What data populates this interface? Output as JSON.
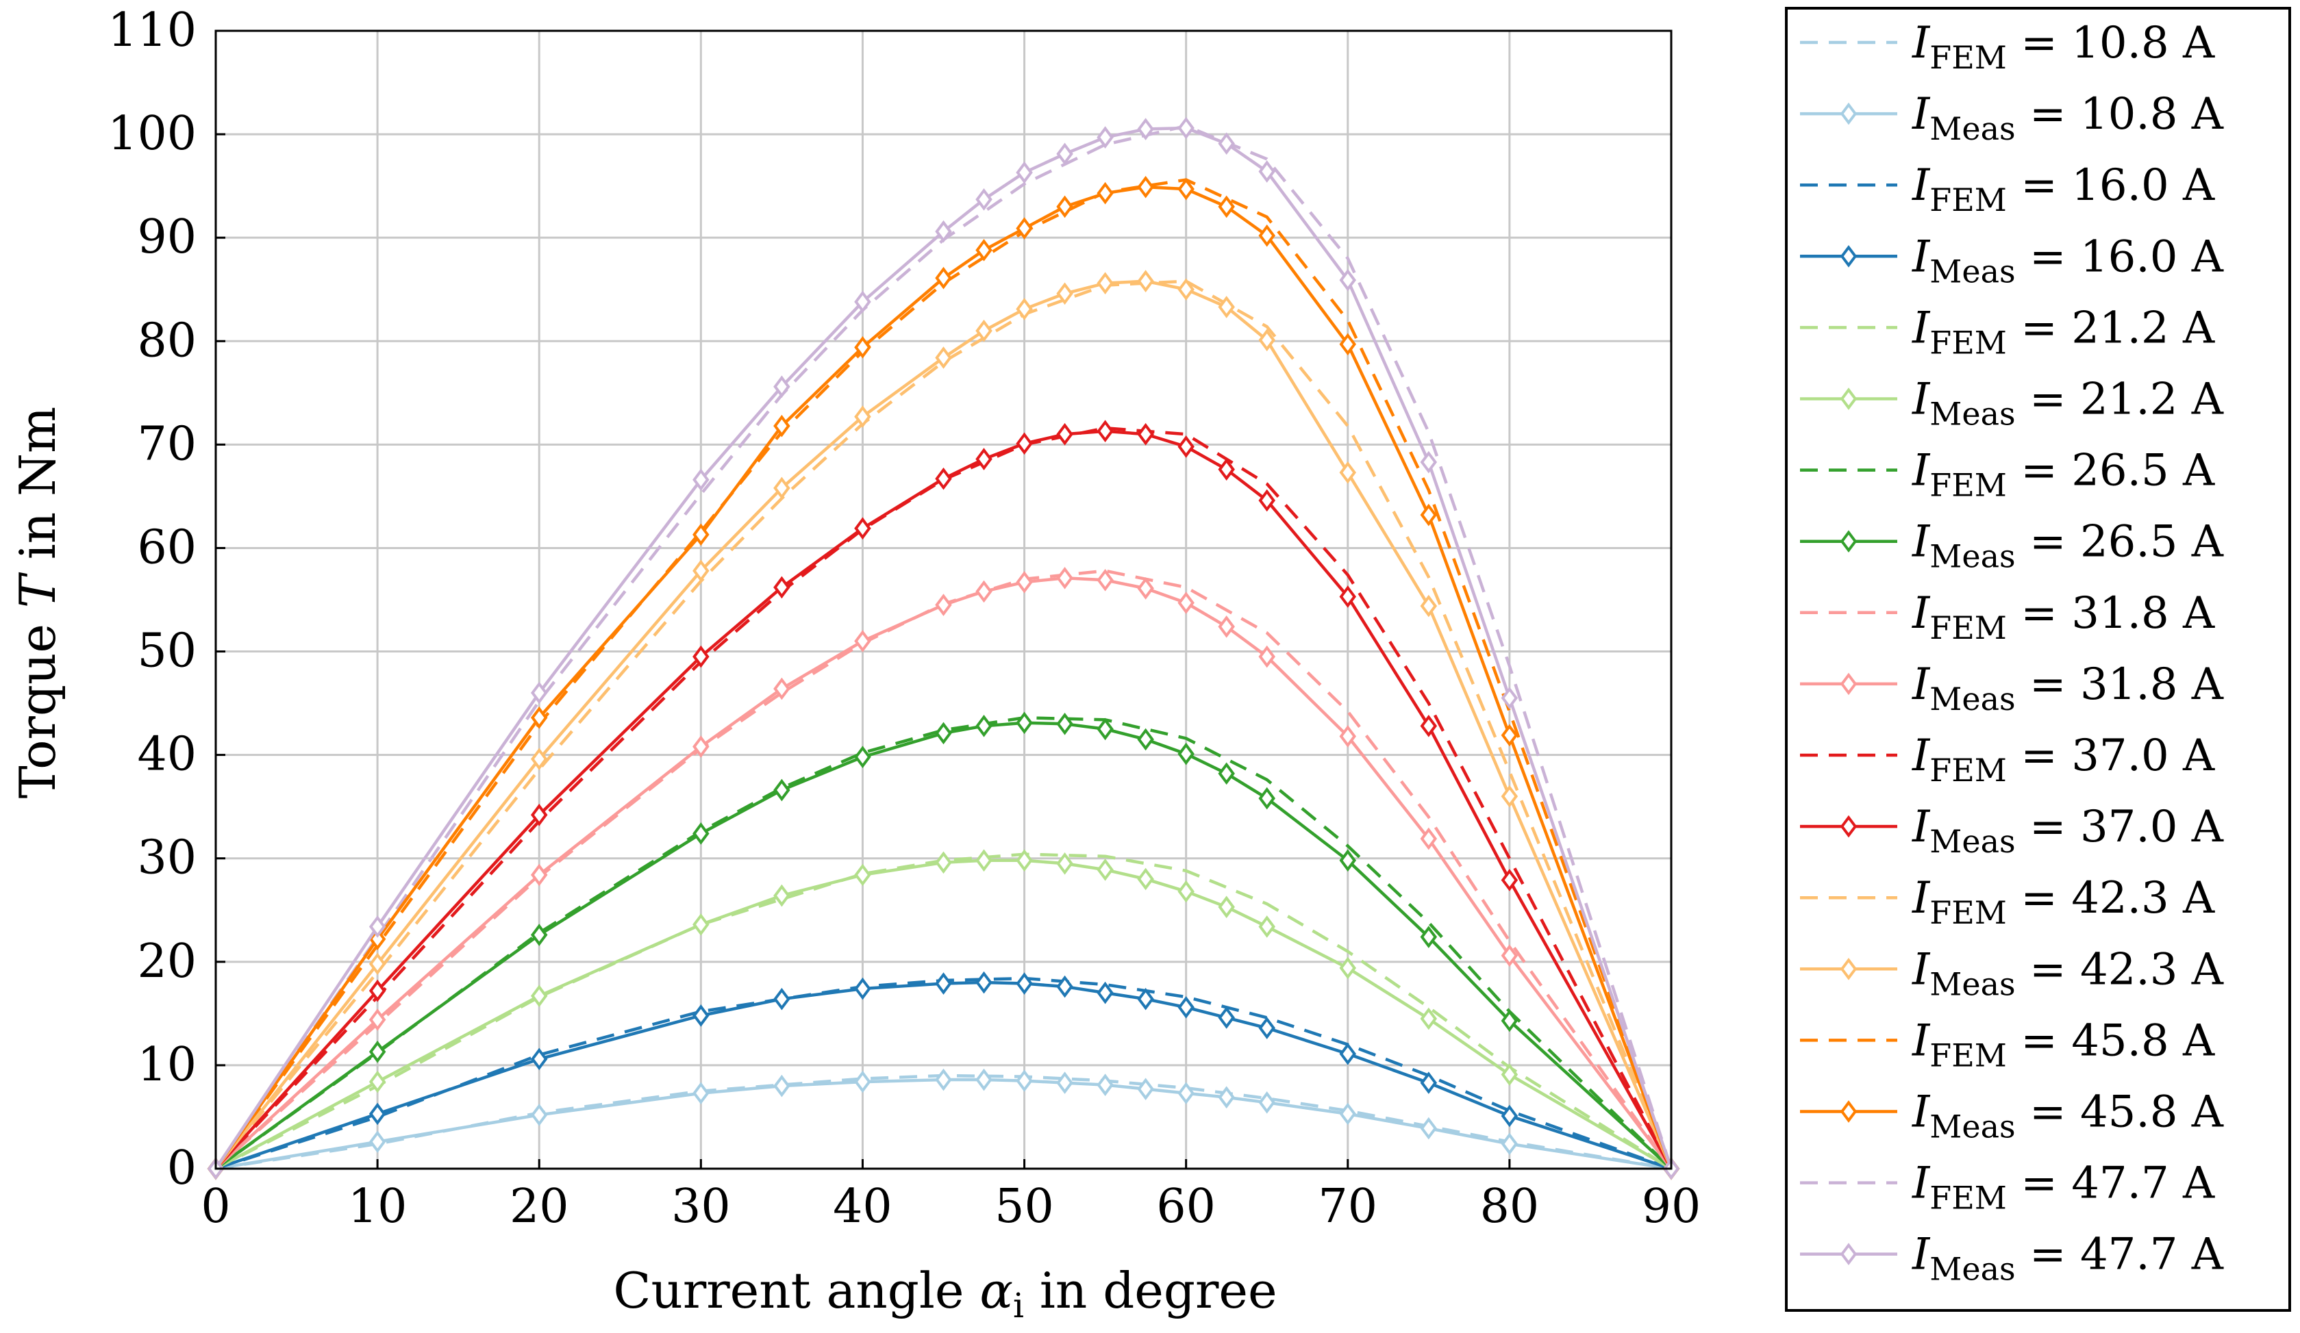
{
  "chart_data": {
    "type": "line",
    "title": "",
    "xlabel": "Current angle α_i in degree",
    "ylabel": "Torque T in Nm",
    "xlabel_parts": {
      "prefix": "Current angle ",
      "symbol": "α",
      "sub": "i",
      "suffix": " in degree"
    },
    "ylabel_parts": {
      "prefix": "Torque ",
      "symbol": "T",
      "suffix": " in Nm"
    },
    "xlim": [
      0,
      90
    ],
    "ylim": [
      0,
      110
    ],
    "xticks": [
      0,
      10,
      20,
      30,
      40,
      50,
      60,
      70,
      80,
      90
    ],
    "yticks": [
      0,
      10,
      20,
      30,
      40,
      50,
      60,
      70,
      80,
      90,
      100,
      110
    ],
    "grid": true,
    "legend_position": "outside-right",
    "series": [
      {
        "name": "I_FEM = 10.8 A",
        "label_symbol": "I",
        "label_sub": "FEM",
        "label_value": " = 10.8 A",
        "style": "dashed",
        "color": "#a6cee3",
        "x": [
          0,
          10,
          20,
          30,
          40,
          45,
          50,
          55,
          60,
          65,
          70,
          75,
          80,
          90
        ],
        "y": [
          0,
          2.4,
          5.4,
          7.5,
          8.7,
          9.0,
          8.9,
          8.5,
          7.8,
          6.8,
          5.6,
          4.1,
          2.6,
          0
        ]
      },
      {
        "name": "I_Meas = 10.8 A",
        "label_symbol": "I",
        "label_sub": "Meas",
        "label_value": " = 10.8 A",
        "style": "solid-diamond",
        "color": "#a6cee3",
        "x": [
          0,
          10,
          20,
          30,
          35,
          40,
          45,
          47.5,
          50,
          52.5,
          55,
          57.5,
          60,
          62.5,
          65,
          70,
          75,
          80,
          90
        ],
        "y": [
          0,
          2.6,
          5.2,
          7.3,
          8.0,
          8.4,
          8.6,
          8.6,
          8.5,
          8.3,
          8.1,
          7.7,
          7.3,
          6.9,
          6.4,
          5.3,
          3.9,
          2.4,
          0
        ]
      },
      {
        "name": "I_FEM = 16.0 A",
        "label_symbol": "I",
        "label_sub": "FEM",
        "label_value": " = 16.0 A",
        "style": "dashed",
        "color": "#1f78b4",
        "x": [
          0,
          10,
          20,
          30,
          40,
          45,
          50,
          55,
          60,
          65,
          70,
          75,
          80,
          90
        ],
        "y": [
          0,
          5.0,
          11.0,
          15.2,
          17.6,
          18.2,
          18.4,
          17.8,
          16.6,
          14.6,
          12.0,
          9.0,
          5.6,
          0
        ]
      },
      {
        "name": "I_Meas = 16.0 A",
        "label_symbol": "I",
        "label_sub": "Meas",
        "label_value": " = 16.0 A",
        "style": "solid-diamond",
        "color": "#1f78b4",
        "x": [
          0,
          10,
          20,
          30,
          35,
          40,
          45,
          47.5,
          50,
          52.5,
          55,
          57.5,
          60,
          62.5,
          65,
          70,
          75,
          80,
          90
        ],
        "y": [
          0,
          5.3,
          10.6,
          14.8,
          16.4,
          17.4,
          17.9,
          18.0,
          17.9,
          17.6,
          17.0,
          16.4,
          15.6,
          14.6,
          13.6,
          11.1,
          8.3,
          5.1,
          0
        ]
      },
      {
        "name": "I_FEM = 21.2 A",
        "label_symbol": "I",
        "label_sub": "FEM",
        "label_value": " = 21.2 A",
        "style": "dashed",
        "color": "#b2df8a",
        "x": [
          0,
          10,
          20,
          30,
          40,
          45,
          50,
          55,
          60,
          65,
          70,
          75,
          80,
          90
        ],
        "y": [
          0,
          8.0,
          16.6,
          23.6,
          28.5,
          29.8,
          30.4,
          30.2,
          28.8,
          25.6,
          21.0,
          15.6,
          9.8,
          0
        ]
      },
      {
        "name": "I_Meas = 21.2 A",
        "label_symbol": "I",
        "label_sub": "Meas",
        "label_value": " = 21.2 A",
        "style": "solid-diamond",
        "color": "#b2df8a",
        "x": [
          0,
          10,
          20,
          30,
          35,
          40,
          45,
          47.5,
          50,
          52.5,
          55,
          57.5,
          60,
          62.5,
          65,
          70,
          75,
          80,
          90
        ],
        "y": [
          0,
          8.4,
          16.7,
          23.6,
          26.4,
          28.4,
          29.6,
          29.8,
          29.8,
          29.5,
          28.9,
          28.0,
          26.8,
          25.3,
          23.4,
          19.4,
          14.5,
          9.1,
          0
        ]
      },
      {
        "name": "I_FEM = 26.5 A",
        "label_symbol": "I",
        "label_sub": "FEM",
        "label_value": " = 26.5 A",
        "style": "dashed",
        "color": "#33a02c",
        "x": [
          0,
          10,
          20,
          30,
          35,
          40,
          45,
          50,
          55,
          60,
          65,
          70,
          75,
          80,
          90
        ],
        "y": [
          0,
          11.2,
          22.8,
          32.6,
          36.8,
          40.2,
          42.4,
          43.6,
          43.4,
          41.6,
          37.6,
          31.2,
          23.8,
          15.2,
          0
        ]
      },
      {
        "name": "I_Meas = 26.5 A",
        "label_symbol": "I",
        "label_sub": "Meas",
        "label_value": " = 26.5 A",
        "style": "solid-diamond",
        "color": "#33a02c",
        "x": [
          0,
          10,
          20,
          30,
          35,
          40,
          45,
          47.5,
          50,
          52.5,
          55,
          57.5,
          60,
          62.5,
          65,
          70,
          75,
          80,
          90
        ],
        "y": [
          0,
          11.3,
          22.6,
          32.4,
          36.6,
          39.8,
          42.1,
          42.8,
          43.1,
          43.0,
          42.5,
          41.5,
          40.1,
          38.2,
          35.8,
          29.8,
          22.4,
          14.3,
          0
        ]
      },
      {
        "name": "I_FEM = 31.8 A",
        "label_symbol": "I",
        "label_sub": "FEM",
        "label_value": " = 31.8 A",
        "style": "dashed",
        "color": "#fb9a99",
        "x": [
          0,
          10,
          20,
          30,
          35,
          40,
          45,
          50,
          55,
          60,
          65,
          70,
          75,
          80,
          90
        ],
        "y": [
          0,
          14.0,
          28.2,
          40.6,
          46.0,
          50.8,
          54.6,
          57.0,
          57.8,
          56.2,
          51.8,
          44.2,
          34.0,
          22.0,
          0
        ]
      },
      {
        "name": "I_Meas = 31.8 A",
        "label_symbol": "I",
        "label_sub": "Meas",
        "label_value": " = 31.8 A",
        "style": "solid-diamond",
        "color": "#fb9a99",
        "x": [
          0,
          10,
          20,
          30,
          35,
          40,
          45,
          47.5,
          50,
          52.5,
          55,
          57.5,
          60,
          62.5,
          65,
          70,
          75,
          80,
          90
        ],
        "y": [
          0,
          14.4,
          28.4,
          40.8,
          46.4,
          51.0,
          54.5,
          55.8,
          56.7,
          57.1,
          56.9,
          56.1,
          54.7,
          52.4,
          49.5,
          41.8,
          31.9,
          20.6,
          0
        ]
      },
      {
        "name": "I_FEM = 37.0 A",
        "label_symbol": "I",
        "label_sub": "FEM",
        "label_value": " = 37.0 A",
        "style": "dashed",
        "color": "#e31a1c",
        "x": [
          0,
          10,
          20,
          30,
          35,
          40,
          45,
          50,
          55,
          60,
          65,
          70,
          75,
          80,
          90
        ],
        "y": [
          0,
          16.6,
          33.6,
          49.0,
          55.8,
          61.8,
          66.6,
          70.0,
          71.6,
          71.0,
          66.2,
          57.4,
          45.0,
          30.0,
          0
        ]
      },
      {
        "name": "I_Meas = 37.0 A",
        "label_symbol": "I",
        "label_sub": "Meas",
        "label_value": " = 37.0 A",
        "style": "solid-diamond",
        "color": "#e31a1c",
        "x": [
          0,
          10,
          20,
          30,
          35,
          40,
          45,
          47.5,
          50,
          52.5,
          55,
          57.5,
          60,
          62.5,
          65,
          70,
          75,
          80,
          90
        ],
        "y": [
          0,
          17.2,
          34.2,
          49.5,
          56.2,
          61.9,
          66.7,
          68.6,
          70.1,
          71.0,
          71.3,
          71.0,
          69.8,
          67.6,
          64.6,
          55.3,
          42.8,
          27.9,
          0
        ]
      },
      {
        "name": "I_FEM = 42.3 A",
        "label_symbol": "I",
        "label_sub": "FEM",
        "label_value": " = 42.3 A",
        "style": "dashed",
        "color": "#fdbf6f",
        "x": [
          0,
          10,
          20,
          30,
          35,
          40,
          45,
          50,
          55,
          60,
          65,
          70,
          75,
          80,
          90
        ],
        "y": [
          0,
          19.0,
          38.6,
          56.8,
          64.8,
          72.0,
          78.0,
          82.6,
          85.4,
          85.8,
          81.4,
          71.8,
          57.2,
          38.4,
          0
        ]
      },
      {
        "name": "I_Meas = 42.3 A",
        "label_symbol": "I",
        "label_sub": "Meas",
        "label_value": " = 42.3 A",
        "style": "solid-diamond",
        "color": "#fdbf6f",
        "x": [
          0,
          10,
          20,
          30,
          35,
          40,
          45,
          47.5,
          50,
          52.5,
          55,
          57.5,
          60,
          62.5,
          65,
          70,
          75,
          80,
          90
        ],
        "y": [
          0,
          19.8,
          39.6,
          57.8,
          65.8,
          72.7,
          78.4,
          81.0,
          83.1,
          84.6,
          85.6,
          85.8,
          85.0,
          83.3,
          80.1,
          67.3,
          54.4,
          36.0,
          0
        ]
      },
      {
        "name": "I_FEM = 45.8 A",
        "label_symbol": "I",
        "label_sub": "FEM",
        "label_value": " = 45.8 A",
        "style": "dashed",
        "color": "#ff7f00",
        "x": [
          0,
          10,
          20,
          30,
          35,
          40,
          45,
          50,
          55,
          60,
          65,
          70,
          75,
          80,
          90
        ],
        "y": [
          0,
          21.6,
          43.0,
          61.6,
          71.2,
          79.0,
          85.6,
          90.6,
          94.4,
          95.6,
          92.0,
          82.0,
          65.6,
          44.2,
          0
        ]
      },
      {
        "name": "I_Meas = 45.8 A",
        "label_symbol": "I",
        "label_sub": "Meas",
        "label_value": " = 45.8 A",
        "style": "solid-diamond",
        "color": "#ff7f00",
        "x": [
          0,
          10,
          20,
          30,
          35,
          40,
          45,
          47.5,
          50,
          52.5,
          55,
          57.5,
          60,
          62.5,
          65,
          70,
          75,
          80,
          90
        ],
        "y": [
          0,
          22.2,
          43.6,
          61.3,
          71.8,
          79.4,
          86.1,
          88.8,
          90.9,
          93.0,
          94.3,
          94.9,
          94.7,
          93.0,
          90.2,
          79.7,
          63.2,
          41.9,
          0
        ]
      },
      {
        "name": "I_FEM = 47.7 A",
        "label_symbol": "I",
        "label_sub": "FEM",
        "label_value": " = 47.7 A",
        "style": "dashed",
        "color": "#cab2d6",
        "x": [
          0,
          10,
          20,
          30,
          35,
          40,
          45,
          50,
          55,
          60,
          65,
          70,
          75,
          80,
          90
        ],
        "y": [
          0,
          22.4,
          45.2,
          65.2,
          74.8,
          83.0,
          89.8,
          95.2,
          99.0,
          100.8,
          97.6,
          88.0,
          71.2,
          48.6,
          0
        ]
      },
      {
        "name": "I_Meas = 47.7 A",
        "label_symbol": "I",
        "label_sub": "Meas",
        "label_value": " = 47.7 A",
        "style": "solid-diamond",
        "color": "#cab2d6",
        "x": [
          0,
          10,
          20,
          30,
          35,
          40,
          45,
          47.5,
          50,
          52.5,
          55,
          57.5,
          60,
          62.5,
          65,
          70,
          75,
          80,
          90
        ],
        "y": [
          0,
          23.4,
          46.0,
          66.6,
          75.6,
          83.8,
          90.6,
          93.7,
          96.3,
          98.1,
          99.7,
          100.5,
          100.6,
          99.1,
          96.4,
          85.9,
          68.3,
          45.5,
          0
        ]
      }
    ]
  }
}
